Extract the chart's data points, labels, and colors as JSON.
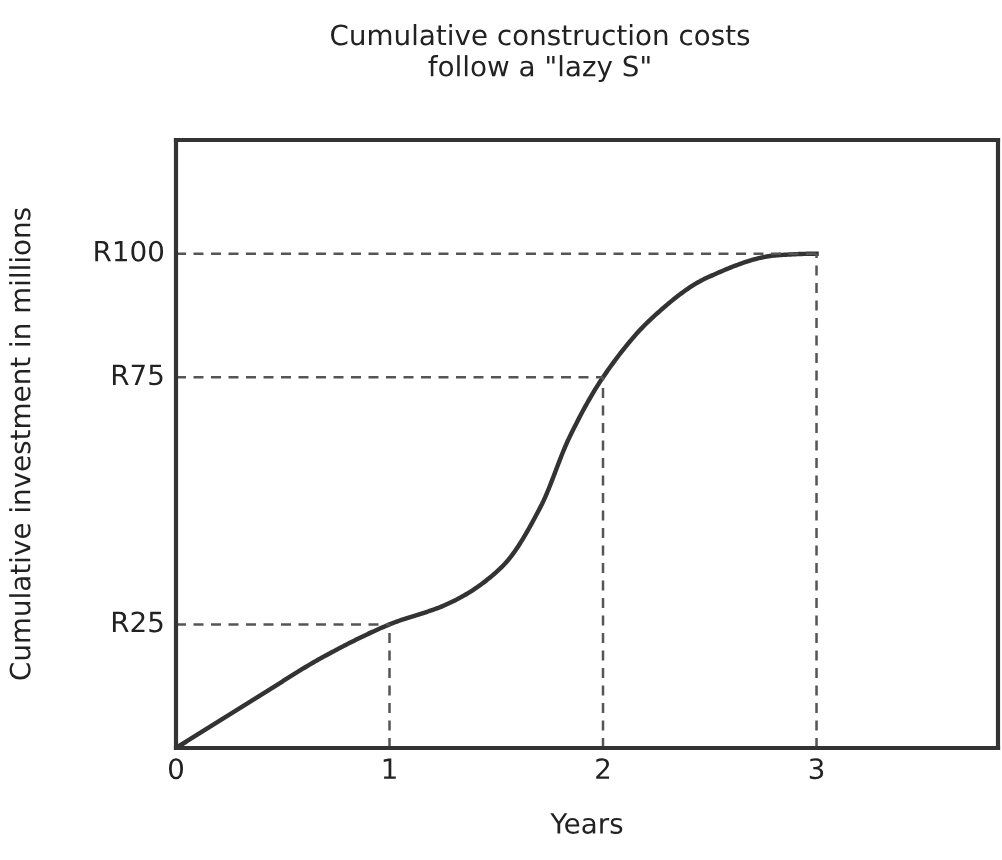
{
  "chart_data": {
    "type": "line",
    "title": "Cumulative construction costs\nfollow a \"lazy S\"",
    "xlabel": "Years",
    "ylabel": "Cumulative investment in millions",
    "x": [
      0,
      0.39,
      0.68,
      1,
      1.28,
      1.53,
      1.71,
      1.84,
      2,
      2.23,
      2.49,
      2.82,
      3
    ],
    "series": [
      {
        "color": "#333333",
        "values": [
          0,
          10.5,
          18.2,
          25,
          29.3,
          36.8,
          49,
          62.6,
          75,
          87,
          95.2,
          99.7,
          100
        ]
      }
    ],
    "xlim": [
      0,
      3.85
    ],
    "ylim": [
      0,
      123
    ],
    "xticks": [
      0,
      1,
      2,
      3
    ],
    "tick_labels": "x",
    "ref_lines": [
      {
        "axis": "y",
        "value": 25,
        "label": "R25",
        "color": "#555555",
        "line_style": "dashed"
      },
      {
        "axis": "y",
        "value": 75,
        "label": "R75",
        "color": "#555555",
        "line_style": "dashed"
      },
      {
        "axis": "y",
        "value": 100,
        "label": "R100",
        "color": "#555555",
        "line_style": "dashed"
      },
      {
        "axis": "x",
        "value": 1,
        "color": "#555555",
        "line_style": "dashed"
      },
      {
        "axis": "x",
        "value": 2,
        "color": "#555555",
        "line_style": "dashed"
      },
      {
        "axis": "x",
        "value": 3,
        "color": "#555555",
        "line_style": "dashed"
      }
    ],
    "grid": false,
    "legend": false,
    "marker": "none",
    "line_style": "solid"
  }
}
